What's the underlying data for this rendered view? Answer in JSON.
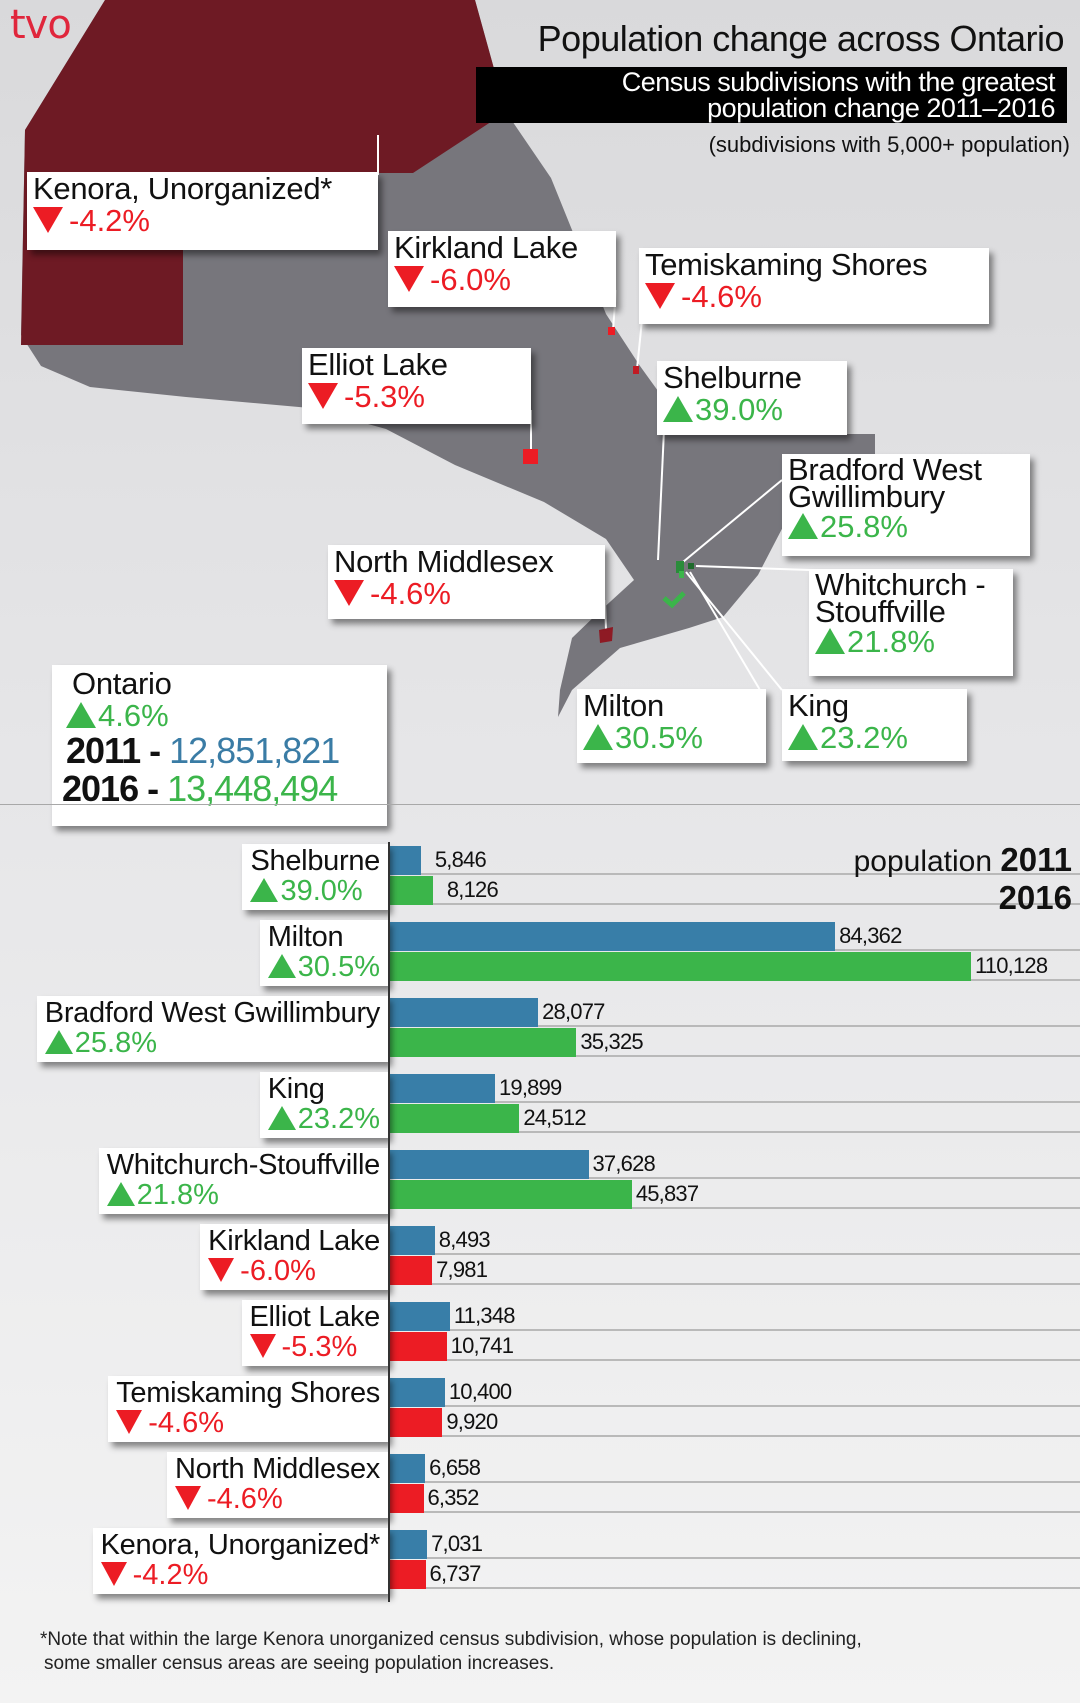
{
  "logo": "tvo",
  "title": "Population change across Ontario",
  "subtitle_lines": [
    "Census subdivisions with the greatest",
    "population change 2011–2016"
  ],
  "subtitle_note": "(subdivisions with 5,000+ population)",
  "colors": {
    "map_gray": "#77767c",
    "kenora_red": "#6e1a24",
    "bar_2011": "#387ea8",
    "bar_2016_increase": "#3bb54a",
    "bar_2016_decrease": "#ec1c24",
    "up": "#3bb54a",
    "down": "#ec1c24"
  },
  "map": {
    "callouts": [
      {
        "name": "Kenora, Unorganized*",
        "change": "-4.2%",
        "dir": "down"
      },
      {
        "name": "Kirkland Lake",
        "change": "-6.0%",
        "dir": "down"
      },
      {
        "name": "Temiskaming Shores",
        "change": "-4.6%",
        "dir": "down"
      },
      {
        "name": "Elliot Lake",
        "change": "-5.3%",
        "dir": "down"
      },
      {
        "name": "Shelburne",
        "change": "39.0%",
        "dir": "up"
      },
      {
        "name": "Bradford West Gwillimbury",
        "change": "25.8%",
        "dir": "up"
      },
      {
        "name": "Whitchurch -Stouffville",
        "change": "21.8%",
        "dir": "up"
      },
      {
        "name": "North Middlesex",
        "change": "-4.6%",
        "dir": "down"
      },
      {
        "name": "Milton",
        "change": "30.5%",
        "dir": "up"
      },
      {
        "name": "King",
        "change": "23.2%",
        "dir": "up"
      }
    ]
  },
  "ontario": {
    "name": "Ontario",
    "change": "4.6%",
    "dir": "up",
    "year_2011": "2011",
    "pop_2011": "12,851,821",
    "year_2016": "2016",
    "pop_2016": "13,448,494",
    "dash": "-"
  },
  "legend": {
    "prefix": "population",
    "year_2011": "2011",
    "year_2016": "2016"
  },
  "chart_data": {
    "type": "bar",
    "orientation": "horizontal",
    "categories": [
      "Shelburne",
      "Milton",
      "Bradford West Gwillimbury",
      "King",
      "Whitchurch-Stouffville",
      "Kirkland Lake",
      "Elliot Lake",
      "Temiskaming Shores",
      "North Middlesex",
      "Kenora, Unorganized*"
    ],
    "changes": [
      "39.0%",
      "30.5%",
      "25.8%",
      "23.2%",
      "21.8%",
      "-6.0%",
      "-5.3%",
      "-4.6%",
      "-4.6%",
      "-4.2%"
    ],
    "directions": [
      "up",
      "up",
      "up",
      "up",
      "up",
      "down",
      "down",
      "down",
      "down",
      "down"
    ],
    "series": [
      {
        "name": "2011",
        "values": [
          5846,
          84362,
          28077,
          19899,
          37628,
          8493,
          11348,
          10400,
          6658,
          7031
        ],
        "labels": [
          "5,846",
          "84,362",
          "28,077",
          "19,899",
          "37,628",
          "8,493",
          "11,348",
          "10,400",
          "6,658",
          "7,031"
        ]
      },
      {
        "name": "2016",
        "values": [
          8126,
          110128,
          35325,
          24512,
          45837,
          7981,
          10741,
          9920,
          6352,
          6737
        ],
        "labels": [
          "8,126",
          "110,128",
          "35,325",
          "24,512",
          "45,837",
          "7,981",
          "10,741",
          "9,920",
          "6,352",
          "6,737"
        ]
      }
    ],
    "xlim": [
      0,
      110128
    ],
    "grid": true,
    "legend": "top-right"
  },
  "footnote_lines": [
    "*Note that within the large Kenora unorganized census subdivision, whose population is declining,",
    "some smaller census areas are seeing population increases."
  ]
}
